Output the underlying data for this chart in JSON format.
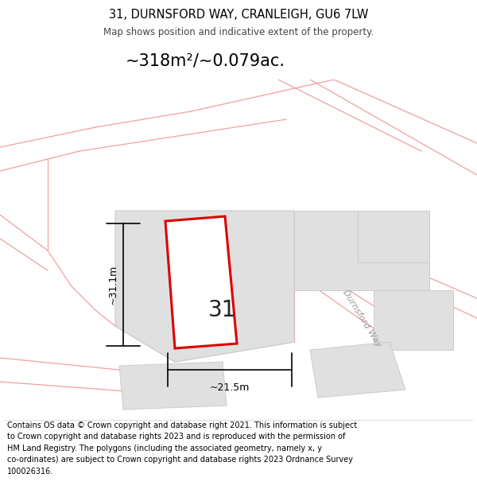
{
  "title_line1": "31, DURNSFORD WAY, CRANLEIGH, GU6 7LW",
  "title_line2": "Map shows position and indicative extent of the property.",
  "area_text": "~318m²/~0.079ac.",
  "label_31": "31",
  "label_height": "~31.1m",
  "label_width": "~21.5m",
  "road_label": "Durnsford Way",
  "footer_text": "Contains OS data © Crown copyright and database right 2021. This information is subject\nto Crown copyright and database rights 2023 and is reproduced with the permission of\nHM Land Registry. The polygons (including the associated geometry, namely x, y\nco-ordinates) are subject to Crown copyright and database rights 2023 Ordnance Survey\n100026316.",
  "bg_color": "#ffffff",
  "map_bg_color": "#ffffff",
  "plot_fill_color": "#ffffff",
  "plot_edge_color": "#dd0000",
  "building_fill_color": "#e0e0e0",
  "building_edge_color": "#cccccc",
  "road_line_color": "#f0a0a0",
  "title_color": "#000000",
  "footer_color": "#000000",
  "dim_line_color": "#000000",
  "road_label_color": "#999999",
  "number_color": "#222222"
}
